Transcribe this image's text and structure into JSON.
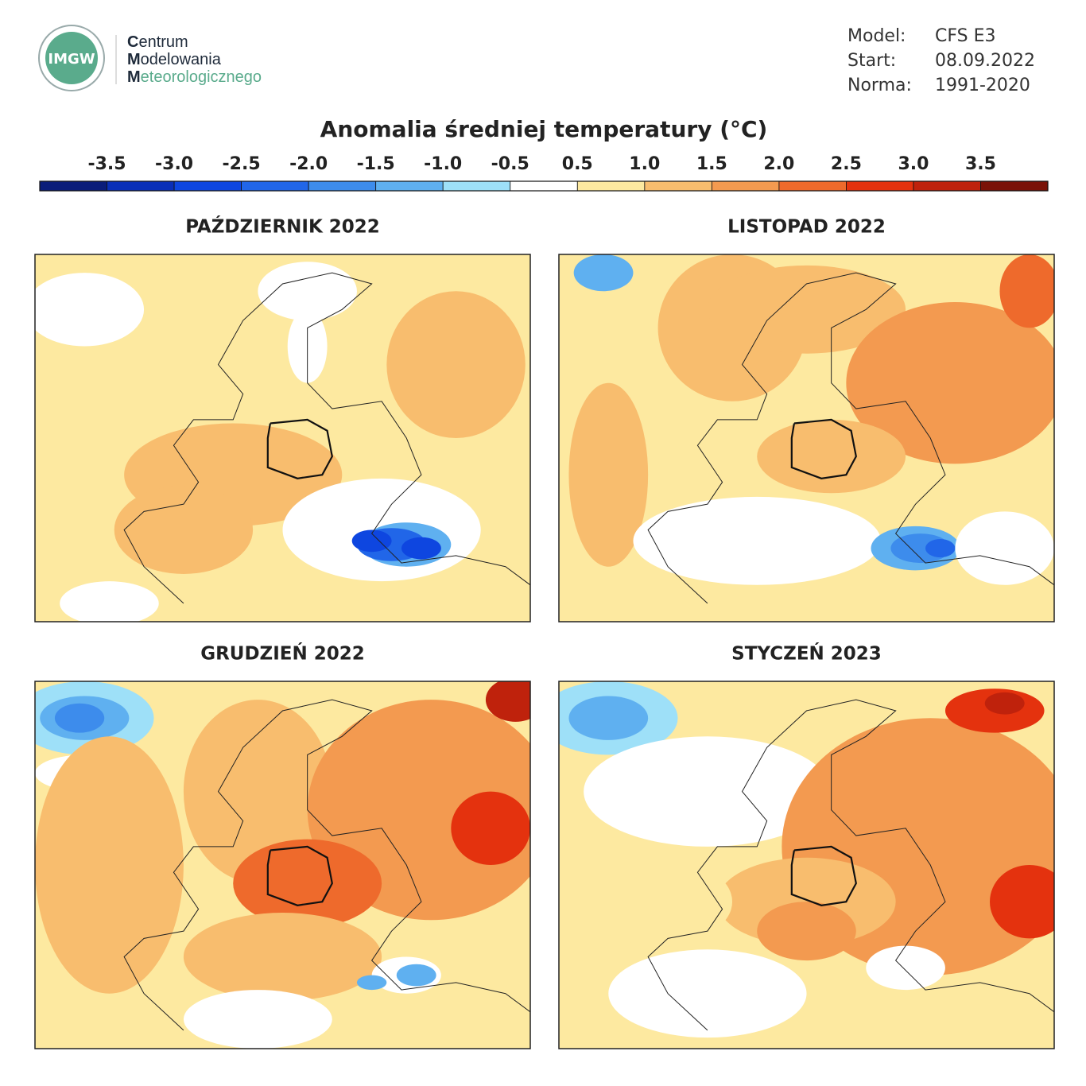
{
  "header": {
    "logo": {
      "mark": "IMGW",
      "lines": [
        "Centrum",
        "Modelowania",
        "Meteorologicznego"
      ]
    },
    "info": [
      {
        "label": "Model:",
        "value": "CFS E3"
      },
      {
        "label": "Start:",
        "value": "08.09.2022"
      },
      {
        "label": "Norma:",
        "value": "1991-2020"
      }
    ]
  },
  "title": "Anomalia średniej temperatury (°C)",
  "colorbar": {
    "ticks": [
      {
        "value": -3.5,
        "label": "-3.5"
      },
      {
        "value": -3,
        "label": "-3.0"
      },
      {
        "value": -2.5,
        "label": "-2.5"
      },
      {
        "value": -2,
        "label": "-2.0"
      },
      {
        "value": -1.5,
        "label": "-1.5"
      },
      {
        "value": -1,
        "label": "-1.0"
      },
      {
        "value": -0.5,
        "label": "-0.5"
      },
      0.5,
      {
        "value": 1,
        "label": "1.0"
      },
      1.5,
      {
        "value": 2,
        "label": "2.0"
      },
      2.5,
      {
        "value": 3,
        "label": "3.0"
      },
      3.5
    ],
    "colors": [
      "#0b1d7a",
      "#0a2fb8",
      "#0e46e0",
      "#2166e8",
      "#3d8cec",
      "#5fb0f0",
      "#9ee0f8",
      "#ffffff",
      "#fde9a0",
      "#f8bd6e",
      "#f39a50",
      "#ee6a2c",
      "#e4320e",
      "#bf220c",
      "#7a1208"
    ]
  },
  "panels": [
    {
      "title": "PAŹDZIERNIK 2022"
    },
    {
      "title": "LISTOPAD 2022"
    },
    {
      "title": "GRUDZIEŃ 2022"
    },
    {
      "title": "STYCZEŃ 2023"
    }
  ]
}
